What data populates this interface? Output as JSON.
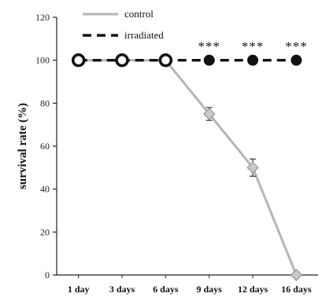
{
  "chart_data": {
    "type": "line",
    "categories": [
      "1 day",
      "3 days",
      "6 days",
      "9 days",
      "12 days",
      "16 days"
    ],
    "ylabel": "survival rate (%)",
    "xlabel": "",
    "ylim": [
      0,
      120
    ],
    "yticks": [
      0,
      20,
      40,
      60,
      80,
      100,
      120
    ],
    "grid": false,
    "legend": "top-left",
    "series": [
      {
        "name": "control",
        "values": [
          100,
          100,
          100,
          75,
          50,
          0
        ],
        "errors": [
          0,
          0,
          0,
          3,
          4,
          0
        ],
        "color": "#b5b5b5",
        "line_style": "solid"
      },
      {
        "name": "irradiated",
        "values": [
          100,
          100,
          100,
          100,
          100,
          100
        ],
        "errors": [
          0,
          0,
          0,
          0,
          0,
          0
        ],
        "color": "#111111",
        "line_style": "dashed"
      }
    ],
    "annotations": [
      {
        "category": "9 days",
        "text": "***"
      },
      {
        "category": "12 days",
        "text": "***"
      },
      {
        "category": "16 days",
        "text": "***"
      }
    ]
  }
}
